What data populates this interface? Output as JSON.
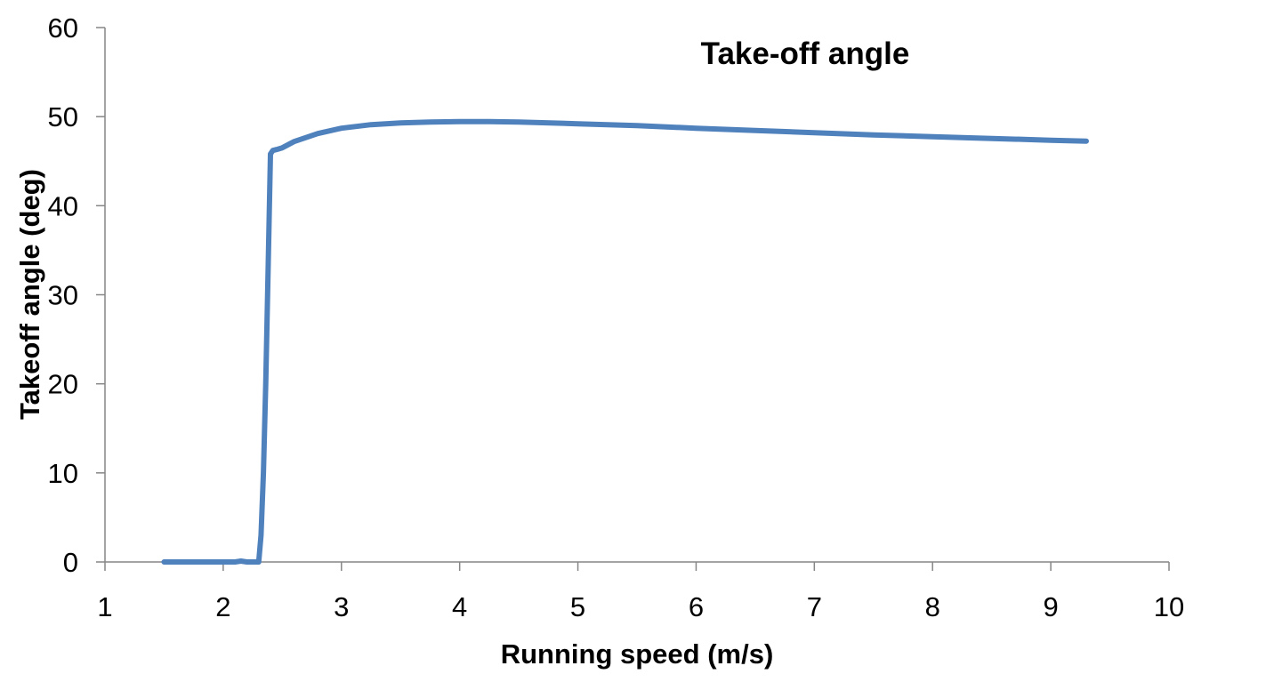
{
  "chart_data": {
    "type": "line",
    "title": "Take-off angle",
    "xlabel": "Running speed (m/s)",
    "ylabel": "Takeoff angle (deg)",
    "xlim": [
      1,
      10
    ],
    "ylim": [
      0,
      60
    ],
    "x_ticks": [
      1,
      2,
      3,
      4,
      5,
      6,
      7,
      8,
      9,
      10
    ],
    "y_ticks": [
      0,
      10,
      20,
      30,
      40,
      50,
      60
    ],
    "x_tick_labels": [
      "1",
      "2",
      "3",
      "4",
      "5",
      "6",
      "7",
      "8",
      "9",
      "10"
    ],
    "y_tick_labels": [
      "0",
      "10",
      "20",
      "30",
      "40",
      "50",
      "60"
    ],
    "grid": false,
    "legend": "none",
    "line_color": "#4f81bd",
    "series": [
      {
        "x": [
          1.5,
          1.8,
          2.0,
          2.1,
          2.15,
          2.2,
          2.3,
          2.32,
          2.34,
          2.36,
          2.38,
          2.4,
          2.42,
          2.45,
          2.5,
          2.6,
          2.8,
          3.0,
          3.25,
          3.5,
          3.75,
          4.0,
          4.25,
          4.5,
          5.0,
          5.5,
          6.0,
          6.5,
          7.0,
          7.5,
          8.0,
          8.5,
          9.0,
          9.3
        ],
        "y": [
          0,
          0,
          0,
          0,
          0.1,
          0,
          0,
          3,
          10,
          20,
          33,
          45.8,
          46.2,
          46.3,
          46.5,
          47.2,
          48.1,
          48.7,
          49.1,
          49.3,
          49.4,
          49.45,
          49.45,
          49.4,
          49.2,
          49.0,
          48.7,
          48.45,
          48.2,
          47.95,
          47.75,
          47.55,
          47.35,
          47.25
        ]
      }
    ]
  }
}
